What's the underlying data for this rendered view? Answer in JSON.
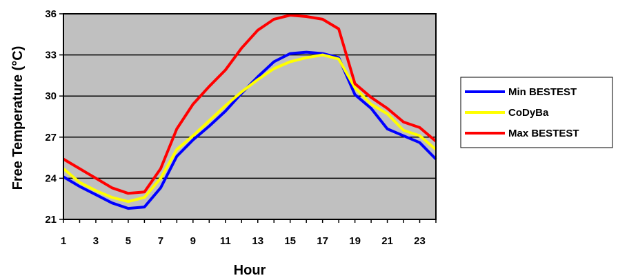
{
  "chart_data": {
    "type": "line",
    "title": "",
    "xlabel": "Hour",
    "ylabel": "Free Temperature (°C)",
    "x": [
      1,
      2,
      3,
      4,
      5,
      6,
      7,
      8,
      9,
      10,
      11,
      12,
      13,
      14,
      15,
      16,
      17,
      18,
      19,
      20,
      21,
      22,
      23,
      24
    ],
    "x_ticks": [
      1,
      3,
      5,
      7,
      9,
      11,
      13,
      15,
      17,
      19,
      21,
      23
    ],
    "xlim": [
      1,
      24
    ],
    "ylim": [
      21,
      36
    ],
    "y_ticks": [
      21,
      24,
      27,
      30,
      33,
      36
    ],
    "grid": "horizontal",
    "legend_position": "right",
    "plot_background": "#c0c0c0",
    "series": [
      {
        "name": "Min BESTEST",
        "color": "#0000ff",
        "values": [
          24.1,
          23.4,
          22.8,
          22.2,
          21.8,
          21.9,
          23.3,
          25.6,
          26.8,
          27.8,
          28.9,
          30.2,
          31.4,
          32.5,
          33.1,
          33.2,
          33.1,
          32.8,
          30.1,
          29.1,
          27.6,
          27.1,
          26.6,
          25.4
        ]
      },
      {
        "name": "CoDyBa",
        "color": "#ffff00",
        "values": [
          24.7,
          23.7,
          23.1,
          22.6,
          22.3,
          22.6,
          24.0,
          26.1,
          27.1,
          28.2,
          29.3,
          30.3,
          31.2,
          32.0,
          32.5,
          32.8,
          33.0,
          32.7,
          30.6,
          29.4,
          28.7,
          27.5,
          27.1,
          26.1
        ]
      },
      {
        "name": "Max BESTEST",
        "color": "#ff0000",
        "values": [
          25.4,
          24.7,
          24.0,
          23.3,
          22.9,
          23.0,
          24.7,
          27.6,
          29.4,
          30.7,
          31.9,
          33.5,
          34.8,
          35.6,
          35.9,
          35.8,
          35.6,
          34.9,
          30.9,
          29.9,
          29.1,
          28.1,
          27.7,
          26.7
        ]
      }
    ]
  }
}
